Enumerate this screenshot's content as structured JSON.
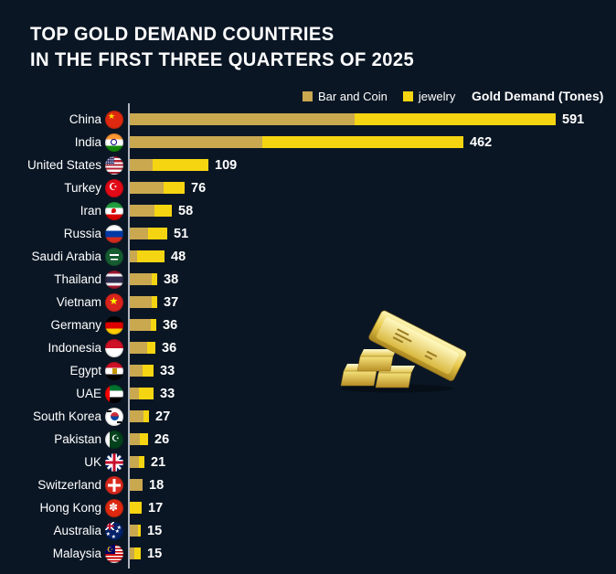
{
  "title": {
    "line1": "TOP GOLD DEMAND COUNTRIES",
    "line2": "IN THE FIRST THREE QUARTERS OF 2025"
  },
  "legend": {
    "items": [
      {
        "label": "Bar and Coin",
        "color": "#c9a850"
      },
      {
        "label": "jewelry",
        "color": "#f5d511"
      }
    ],
    "axis_title": "Gold Demand (Tones)"
  },
  "colors": {
    "background": "#0a1624",
    "bar_and_coin": "#c9a850",
    "jewelry": "#f5d511",
    "axis_line": "#aeb4bd",
    "text": "#ffffff"
  },
  "icons": {
    "decoration": "gold-bars-illustration",
    "flags": [
      "china-flag-icon",
      "india-flag-icon",
      "united-states-flag-icon",
      "turkey-flag-icon",
      "iran-flag-icon",
      "russia-flag-icon",
      "saudi-arabia-flag-icon",
      "thailand-flag-icon",
      "vietnam-flag-icon",
      "germany-flag-icon",
      "indonesia-flag-icon",
      "egypt-flag-icon",
      "uae-flag-icon",
      "south-korea-flag-icon",
      "pakistan-flag-icon",
      "uk-flag-icon",
      "switzerland-flag-icon",
      "hong-kong-flag-icon",
      "australia-flag-icon",
      "malaysia-flag-icon"
    ]
  },
  "chart_data": {
    "type": "bar",
    "orientation": "horizontal",
    "stacked": true,
    "title": "TOP GOLD DEMAND COUNTRIES IN THE FIRST THREE QUARTERS OF 2025",
    "xlabel": "Gold Demand (Tones)",
    "ylabel": "",
    "unit": "Tones",
    "xlim": [
      0,
      650
    ],
    "grid": false,
    "legend_position": "top",
    "categories": [
      "China",
      "India",
      "United States",
      "Turkey",
      "Iran",
      "Russia",
      "Saudi Arabia",
      "Thailand",
      "Vietnam",
      "Germany",
      "Indonesia",
      "Egypt",
      "UAE",
      "South Korea",
      "Pakistan",
      "UK",
      "Switzerland",
      "Hong Kong",
      "Australia",
      "Malaysia"
    ],
    "flag_codes": [
      "cn",
      "in",
      "us",
      "tr",
      "ir",
      "ru",
      "sa",
      "th",
      "vn",
      "de",
      "id",
      "eg",
      "ae",
      "kr",
      "pk",
      "uk",
      "ch",
      "hk",
      "au",
      "my"
    ],
    "totals": [
      591,
      462,
      109,
      76,
      58,
      51,
      48,
      38,
      37,
      36,
      36,
      33,
      33,
      27,
      26,
      21,
      18,
      17,
      15,
      15
    ],
    "series": [
      {
        "name": "Bar and Coin",
        "color": "#c9a850",
        "values": [
          312,
          184,
          32,
          47,
          34,
          25,
          10,
          31,
          30,
          29,
          24,
          18,
          13,
          19,
          14,
          13,
          18,
          0,
          11,
          6
        ]
      },
      {
        "name": "jewelry",
        "color": "#f5d511",
        "values": [
          279,
          278,
          77,
          29,
          24,
          26,
          38,
          7,
          7,
          7,
          12,
          15,
          20,
          8,
          12,
          8,
          0,
          17,
          4,
          9
        ]
      }
    ]
  }
}
